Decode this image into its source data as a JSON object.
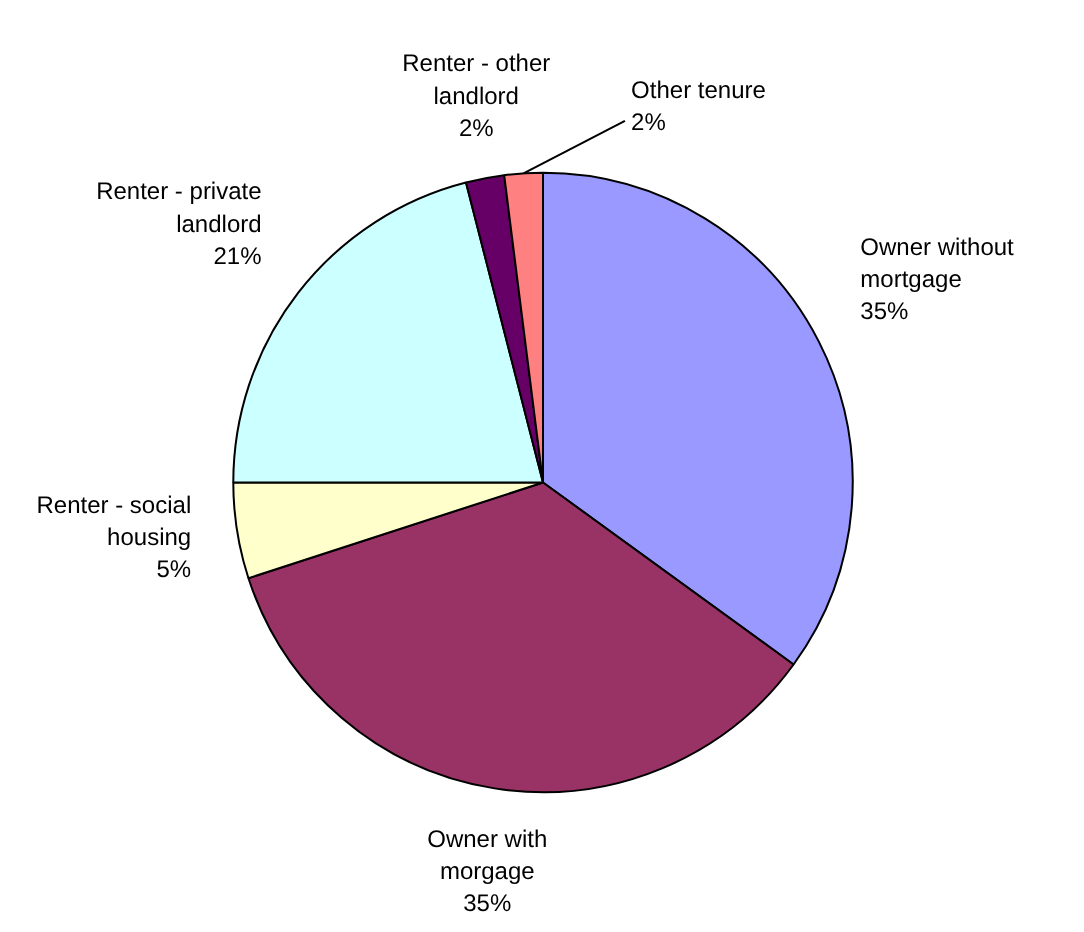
{
  "chart_data": {
    "type": "pie",
    "categories": [
      "Owner without mortgage",
      "Owner with morgage",
      "Renter - social housing",
      "Renter - private landlord",
      "Renter - other landlord",
      "Other tenure"
    ],
    "values": [
      35,
      35,
      5,
      21,
      2,
      2
    ],
    "colors": [
      "#9999ff",
      "#993366",
      "#ffffcc",
      "#ccffff",
      "#660066",
      "#ff8080"
    ],
    "value_labels": [
      "35%",
      "35%",
      "5%",
      "21%",
      "2%",
      "2%"
    ]
  }
}
